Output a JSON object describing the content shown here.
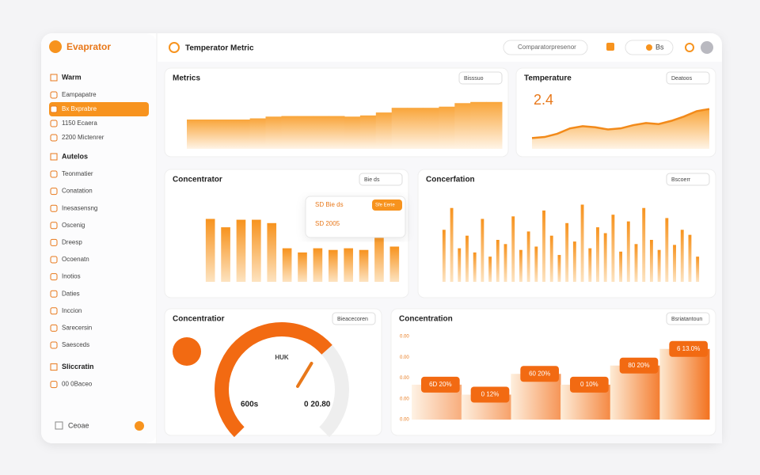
{
  "sidebar": {
    "brand": "Evaprator",
    "sections": [
      {
        "title": "Warm",
        "items": [
          "Eampapatre",
          "Bx Bxprabre",
          "1150 Ecaera",
          "2200 Mictenrer"
        ]
      },
      {
        "title": "Autelos",
        "items": [
          "Teonmatier",
          "Conatation",
          "Inesasensng",
          "Oscenig",
          "Dreesp",
          "Ocoenatn",
          "Inotios",
          "Daties",
          "Inccion",
          "Sarecersin",
          "Saesceds"
        ]
      },
      {
        "title": "Sliccratin",
        "items": [
          "00 0Baceo"
        ]
      }
    ],
    "footer": "Ceoae"
  },
  "header": {
    "title": "Temperator Metric",
    "search": "Comparatorpresenor",
    "button": "Bs"
  },
  "panels": [
    {
      "title": "Metrics",
      "tool": "Bisssuo",
      "chart": {
        "type": "step-area",
        "values": [
          50,
          50,
          50,
          50,
          52,
          55,
          56,
          56,
          56,
          56,
          55,
          57,
          62,
          70,
          70,
          70,
          72,
          78,
          80,
          80
        ],
        "ylim": [
          0,
          100
        ]
      }
    },
    {
      "title": "Temperature",
      "tool": "Deatoos",
      "big": "2.4",
      "chart": {
        "type": "area",
        "values": [
          20,
          22,
          28,
          38,
          42,
          40,
          36,
          38,
          44,
          48,
          46,
          52,
          60,
          70,
          74
        ],
        "ylim": [
          0,
          100
        ]
      }
    },
    {
      "title": "Concentrator",
      "tool": "Bie ds",
      "chart": {
        "type": "bar",
        "values": [
          75,
          65,
          74,
          74,
          70,
          40,
          35,
          40,
          38,
          40,
          38,
          55,
          42
        ],
        "ylim": [
          0,
          100
        ]
      },
      "tooltip": [
        "SD Bie ds",
        "SD 2005"
      ],
      "tooltip_button": "Sfe Eerie"
    },
    {
      "title": "Concerfation",
      "tool": "Bscoerr",
      "chart": {
        "type": "bar",
        "values": [
          62,
          88,
          40,
          55,
          35,
          75,
          30,
          50,
          45,
          78,
          38,
          60,
          42,
          85,
          55,
          32,
          70,
          48,
          92,
          40,
          65,
          58,
          80,
          36,
          72,
          45,
          88,
          50,
          38,
          76,
          44,
          62,
          56,
          30
        ],
        "ylim": [
          0,
          100
        ]
      }
    },
    {
      "title": "Concentratior",
      "tool": "Bieacecoren",
      "chart": {
        "type": "gauge",
        "value": 68,
        "max": 100
      },
      "readouts": [
        "600s",
        "0 20.80"
      ],
      "center": "HUK"
    },
    {
      "title": "Concentration",
      "tool": "Bsriatantoun",
      "chart": {
        "type": "step",
        "values": [
          42,
          30,
          55,
          42,
          65,
          85
        ],
        "ylim": [
          0,
          100
        ]
      },
      "annotations": [
        "6D 20%",
        "0 12%",
        "60 20%",
        "0 10%",
        "80 20%",
        "6 13.0%"
      ],
      "axis_labels": [
        "0.00",
        "0.00",
        "0.00",
        "0.00",
        "0.00"
      ]
    }
  ]
}
